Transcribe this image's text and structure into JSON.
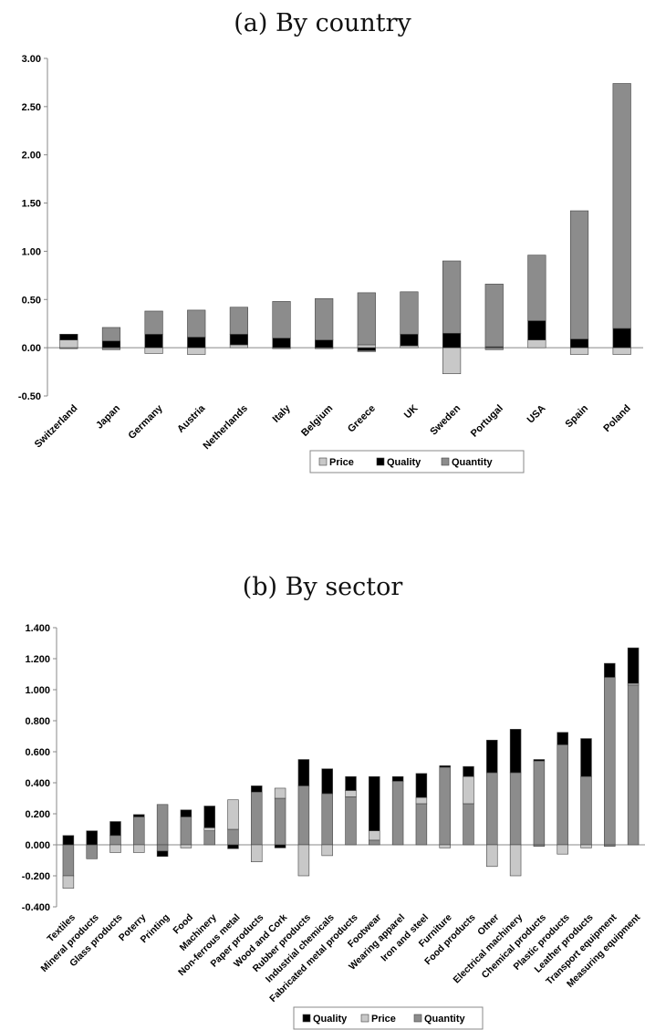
{
  "chart_data": [
    {
      "type": "bar",
      "stacked": true,
      "title": "(a) By country",
      "categories": [
        "Switzerland",
        "Japan",
        "Germany",
        "Austria",
        "Netherlands",
        "Italy",
        "Belgium",
        "Greece",
        "UK",
        "Sweden",
        "Portugal",
        "USA",
        "Spain",
        "Poland"
      ],
      "series": [
        {
          "name": "Price",
          "color": "#c8c8c8",
          "pos": [
            0.08,
            0.0,
            0.0,
            0.0,
            0.03,
            0.0,
            0.0,
            0.03,
            0.02,
            0.0,
            0.0,
            0.08,
            0.0,
            0.0
          ],
          "neg": [
            0.0,
            0.0,
            -0.06,
            -0.07,
            0.0,
            0.0,
            0.0,
            0.0,
            0.0,
            -0.27,
            0.0,
            0.0,
            -0.07,
            -0.07
          ]
        },
        {
          "name": "Quality",
          "color": "#000000",
          "pos": [
            0.06,
            0.07,
            0.14,
            0.11,
            0.11,
            0.1,
            0.08,
            0.0,
            0.12,
            0.15,
            0.01,
            0.2,
            0.09,
            0.2
          ],
          "neg": [
            0.0,
            0.0,
            0.0,
            0.0,
            0.0,
            0.0,
            0.0,
            -0.03,
            0.0,
            0.0,
            0.0,
            0.0,
            0.0,
            0.0
          ]
        },
        {
          "name": "Quantity",
          "color": "#8c8c8c",
          "pos": [
            0.0,
            0.14,
            0.24,
            0.28,
            0.28,
            0.38,
            0.43,
            0.54,
            0.44,
            0.75,
            0.65,
            0.68,
            1.33,
            2.54
          ],
          "neg": [
            -0.01,
            -0.02,
            0.0,
            0.0,
            0.0,
            -0.01,
            -0.01,
            -0.01,
            0.0,
            0.0,
            -0.02,
            0.0,
            0.0,
            0.0
          ]
        }
      ],
      "ylim": [
        -0.5,
        3.0
      ],
      "yticks": [
        "-0.50",
        "0.00",
        "0.50",
        "1.00",
        "1.50",
        "2.00",
        "2.50",
        "3.00"
      ],
      "legend": [
        "Price",
        "Quality",
        "Quantity"
      ],
      "legend_position": "bottom"
    },
    {
      "type": "bar",
      "stacked": true,
      "title": "(b) By sector",
      "categories": [
        "Textiles",
        "Mineral products",
        "Glass products",
        "Poterry",
        "Printing",
        "Food",
        "Machinery",
        "Non-ferrous metal",
        "Paper products",
        "Wood and Cork",
        "Rubber products",
        "Industrial chemicals",
        "Fabricated metal products",
        "Footwear",
        "Wearing apparel",
        "Iron and steel",
        "Furniture",
        "Food products",
        "Other",
        "Electrical machinery",
        "Chemical products",
        "Plastic products",
        "Leather products",
        "Transport equipment",
        "Measuring equipment"
      ],
      "series": [
        {
          "name": "Quantity",
          "color": "#8c8c8c",
          "pos": [
            0.0,
            0.0,
            0.06,
            0.18,
            0.26,
            0.18,
            0.09,
            0.1,
            0.34,
            0.3,
            0.38,
            0.33,
            0.31,
            0.03,
            0.41,
            0.265,
            0.5,
            0.265,
            0.465,
            0.465,
            0.54,
            0.645,
            0.44,
            1.08,
            1.03
          ],
          "neg": [
            -0.2,
            -0.09,
            0.0,
            0.0,
            -0.04,
            0.0,
            0.0,
            0.0,
            0.0,
            0.0,
            0.0,
            0.0,
            0.0,
            0.0,
            0.0,
            0.0,
            0.0,
            0.0,
            0.0,
            0.0,
            -0.01,
            0.0,
            0.0,
            -0.01,
            0.0
          ]
        },
        {
          "name": "Price",
          "color": "#c8c8c8",
          "pos": [
            0.0,
            0.0,
            0.0,
            0.0,
            0.0,
            0.0,
            0.02,
            0.19,
            0.0,
            0.065,
            0.0,
            0.0,
            0.04,
            0.06,
            0.0,
            0.04,
            0.0,
            0.175,
            0.0,
            0.0,
            0.0,
            0.0,
            0.0,
            0.0,
            0.01
          ],
          "neg": [
            -0.08,
            0.0,
            -0.05,
            -0.05,
            0.0,
            -0.02,
            0.0,
            0.0,
            -0.11,
            0.0,
            -0.2,
            -0.07,
            0.0,
            0.0,
            0.0,
            0.0,
            -0.02,
            0.0,
            -0.14,
            -0.2,
            0.0,
            -0.06,
            -0.02,
            0.0,
            0.0
          ]
        },
        {
          "name": "Quality",
          "color": "#000000",
          "pos": [
            0.06,
            0.09,
            0.09,
            0.015,
            0.0,
            0.045,
            0.14,
            0.0,
            0.04,
            0.0,
            0.17,
            0.16,
            0.09,
            0.35,
            0.03,
            0.155,
            0.01,
            0.065,
            0.21,
            0.28,
            0.01,
            0.08,
            0.245,
            0.09,
            0.23
          ],
          "neg": [
            0.0,
            0.0,
            0.0,
            0.0,
            -0.035,
            0.0,
            0.0,
            -0.025,
            0.0,
            -0.02,
            0.0,
            0.0,
            0.0,
            0.0,
            0.0,
            0.0,
            0.0,
            0.0,
            0.0,
            0.0,
            0.0,
            0.0,
            0.0,
            0.0,
            0.0
          ]
        }
      ],
      "ylim": [
        -0.4,
        1.4
      ],
      "yticks": [
        "-0.400",
        "-0.200",
        "0.000",
        "0.200",
        "0.400",
        "0.600",
        "0.800",
        "1.000",
        "1.200",
        "1.400"
      ],
      "legend": [
        "Quality",
        "Price",
        "Quantity"
      ],
      "legend_position": "bottom"
    }
  ]
}
